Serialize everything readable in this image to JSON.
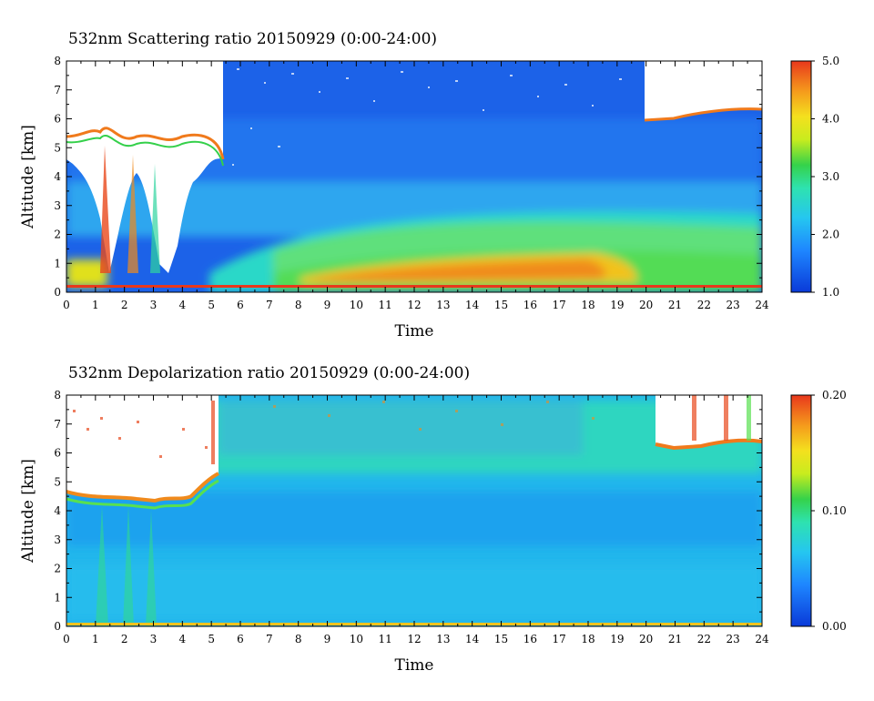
{
  "chart_data": [
    {
      "type": "heatmap",
      "title": "532nm Scattering ratio  20150929 (0:00-24:00)",
      "xlabel": "Time",
      "ylabel": "Altitude [km]",
      "x_range": [
        0,
        24
      ],
      "y_range": [
        0,
        8
      ],
      "x_ticks": [
        "0",
        "1",
        "2",
        "3",
        "4",
        "5",
        "6",
        "7",
        "8",
        "9",
        "10",
        "11",
        "12",
        "13",
        "14",
        "15",
        "16",
        "17",
        "18",
        "19",
        "20",
        "21",
        "22",
        "23",
        "24"
      ],
      "y_ticks": [
        "0",
        "1",
        "2",
        "3",
        "4",
        "5",
        "6",
        "7",
        "8"
      ],
      "colorbar": {
        "range": [
          1.0,
          5.0
        ],
        "ticks": [
          "1.0",
          "2.0",
          "3.0",
          "4.0",
          "5.0"
        ]
      }
    },
    {
      "type": "heatmap",
      "title": "532nm Depolarization ratio  20150929 (0:00-24:00)",
      "xlabel": "Time",
      "ylabel": "Altitude [km]",
      "x_range": [
        0,
        24
      ],
      "y_range": [
        0,
        8
      ],
      "x_ticks": [
        "0",
        "1",
        "2",
        "3",
        "4",
        "5",
        "6",
        "7",
        "8",
        "9",
        "10",
        "11",
        "12",
        "13",
        "14",
        "15",
        "16",
        "17",
        "18",
        "19",
        "20",
        "21",
        "22",
        "23",
        "24"
      ],
      "y_ticks": [
        "0",
        "1",
        "2",
        "3",
        "4",
        "5",
        "6",
        "7",
        "8"
      ],
      "colorbar": {
        "range": [
          0.0,
          0.2
        ],
        "ticks": [
          "0.00",
          "0.10",
          "0.20"
        ]
      }
    }
  ]
}
